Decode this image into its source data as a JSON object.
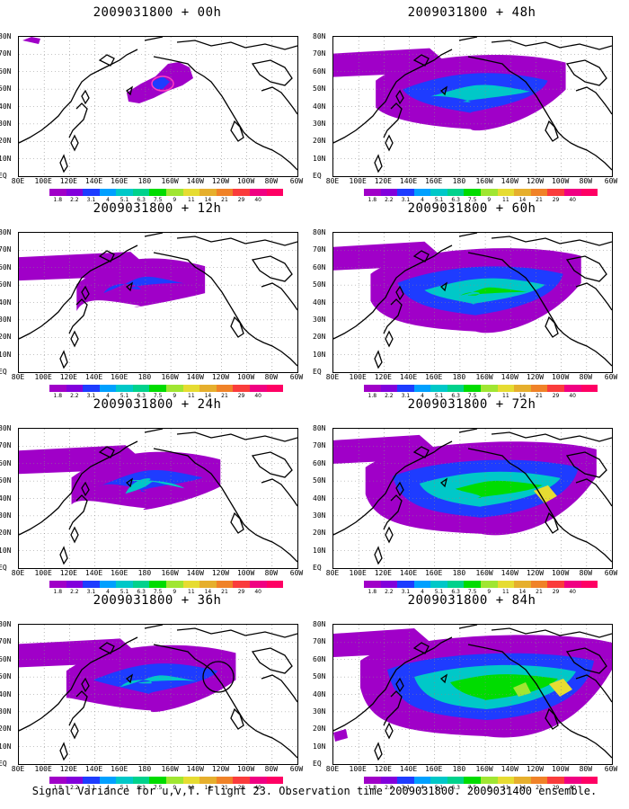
{
  "panels": [
    {
      "title": "2009031800 + 00h",
      "col": 0,
      "row": 0,
      "level": 0,
      "marker": "pink-ellipse"
    },
    {
      "title": "2009031800 + 12h",
      "col": 0,
      "row": 1,
      "level": 1,
      "marker": ""
    },
    {
      "title": "2009031800 + 24h",
      "col": 0,
      "row": 2,
      "level": 2,
      "marker": ""
    },
    {
      "title": "2009031800 + 36h",
      "col": 0,
      "row": 3,
      "level": 3,
      "marker": "black-circle"
    },
    {
      "title": "2009031800 + 48h",
      "col": 1,
      "row": 0,
      "level": 4,
      "marker": ""
    },
    {
      "title": "2009031800 + 60h",
      "col": 1,
      "row": 1,
      "level": 5,
      "marker": ""
    },
    {
      "title": "2009031800 + 72h",
      "col": 1,
      "row": 2,
      "level": 6,
      "marker": ""
    },
    {
      "title": "2009031800 + 84h",
      "col": 1,
      "row": 3,
      "level": 7,
      "marker": ""
    }
  ],
  "lat_labels": [
    "80N",
    "70N",
    "60N",
    "50N",
    "40N",
    "30N",
    "20N",
    "10N",
    "EQ"
  ],
  "lon_labels": [
    "80E",
    "100E",
    "120E",
    "140E",
    "160E",
    "180",
    "160W",
    "140W",
    "120W",
    "100W",
    "80W",
    "60W"
  ],
  "colorbar": {
    "labels": [
      "1.8",
      "2.2",
      "3.1",
      "4",
      "5.1",
      "6.3",
      "7.5",
      "9",
      "11",
      "14",
      "21",
      "29",
      "40"
    ],
    "colors": [
      "#a000c8",
      "#8200dc",
      "#1e3cff",
      "#00a0ff",
      "#00c8c8",
      "#00d28c",
      "#00dc00",
      "#a0e632",
      "#e6dc32",
      "#e6af2d",
      "#f08228",
      "#fa3c3c",
      "#f00082"
    ]
  },
  "caption": "Signal Variance for u,v,T. Flight 23. Observation time 2009031800. 2009031400 ensemble."
}
